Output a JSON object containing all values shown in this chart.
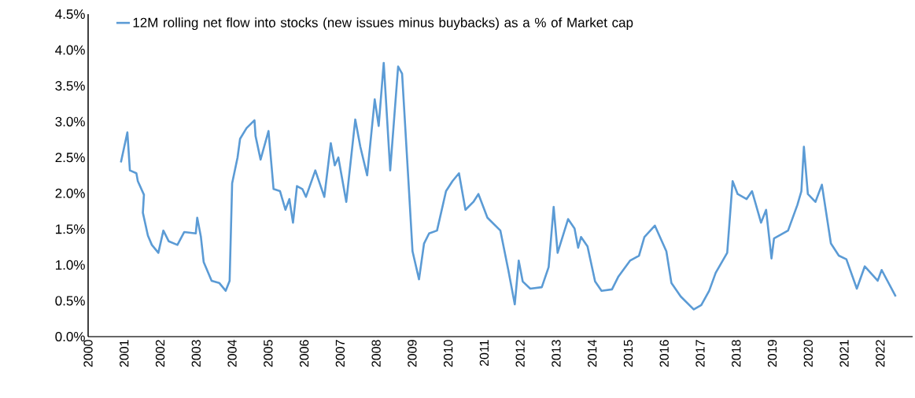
{
  "chart_data": {
    "type": "line",
    "legend": "top left",
    "x": [
      2000.91,
      2001.09,
      2001.16,
      2001.34,
      2001.38,
      2001.55,
      2001.52,
      2001.66,
      2001.77,
      2001.95,
      2002.09,
      2002.24,
      2002.48,
      2002.67,
      2002.99,
      2003.03,
      2003.13,
      2003.21,
      2003.43,
      2003.64,
      2003.82,
      2003.93,
      2004.0,
      2004.15,
      2004.22,
      2004.4,
      2004.62,
      2004.65,
      2004.79,
      2005.01,
      2005.15,
      2005.33,
      2005.48,
      2005.59,
      2005.69,
      2005.8,
      2005.95,
      2006.05,
      2006.31,
      2006.56,
      2006.74,
      2006.85,
      2006.95,
      2007.17,
      2007.42,
      2007.56,
      2007.75,
      2007.96,
      2008.07,
      2008.21,
      2008.39,
      2008.61,
      2008.72,
      2008.9,
      2009.01,
      2009.19,
      2009.33,
      2009.47,
      2009.69,
      2009.94,
      2010.12,
      2010.3,
      2010.48,
      2010.7,
      2010.84,
      2011.09,
      2011.45,
      2011.67,
      2011.85,
      2011.96,
      2012.07,
      2012.28,
      2012.6,
      2012.79,
      2012.93,
      2013.04,
      2013.33,
      2013.51,
      2013.61,
      2013.69,
      2013.87,
      2014.08,
      2014.26,
      2014.55,
      2014.73,
      2015.05,
      2015.3,
      2015.45,
      2015.74,
      2016.06,
      2016.2,
      2016.46,
      2016.82,
      2017.03,
      2017.25,
      2017.43,
      2017.75,
      2017.9,
      2018.04,
      2018.29,
      2018.44,
      2018.69,
      2018.83,
      2018.98,
      2019.05,
      2019.44,
      2019.7,
      2019.81,
      2019.88,
      2019.99,
      2020.2,
      2020.38,
      2020.63,
      2020.85,
      2021.06,
      2021.35,
      2021.57,
      2021.93,
      2022.04,
      2022.43
    ],
    "series": [
      {
        "name": "12M rolling net flow into stocks (new issues minus buybacks) as a % of Market cap",
        "color": "#5b9bd5",
        "values": [
          2.43,
          2.85,
          2.32,
          2.28,
          2.17,
          1.98,
          1.73,
          1.41,
          1.28,
          1.17,
          1.48,
          1.33,
          1.28,
          1.46,
          1.44,
          1.66,
          1.4,
          1.04,
          0.78,
          0.75,
          0.64,
          0.78,
          2.14,
          2.5,
          2.76,
          2.91,
          3.02,
          2.8,
          2.47,
          2.87,
          2.06,
          2.03,
          1.77,
          1.92,
          1.59,
          2.1,
          2.06,
          1.95,
          2.32,
          1.95,
          2.7,
          2.39,
          2.5,
          1.88,
          3.03,
          2.65,
          2.25,
          3.31,
          2.94,
          3.82,
          2.32,
          3.77,
          3.67,
          2.14,
          1.19,
          0.8,
          1.3,
          1.44,
          1.48,
          2.03,
          2.17,
          2.28,
          1.77,
          1.88,
          1.99,
          1.66,
          1.48,
          0.93,
          0.45,
          1.06,
          0.77,
          0.67,
          0.69,
          0.97,
          1.81,
          1.17,
          1.64,
          1.51,
          1.24,
          1.39,
          1.26,
          0.77,
          0.64,
          0.66,
          0.84,
          1.06,
          1.13,
          1.39,
          1.55,
          1.19,
          0.75,
          0.56,
          0.38,
          0.44,
          0.64,
          0.89,
          1.17,
          2.17,
          1.99,
          1.92,
          2.03,
          1.59,
          1.77,
          1.09,
          1.37,
          1.48,
          1.84,
          2.03,
          2.65,
          1.99,
          1.88,
          2.12,
          1.3,
          1.13,
          1.08,
          0.67,
          0.98,
          0.78,
          0.93,
          0.56
        ]
      }
    ],
    "xlim": [
      2000,
      2022.9
    ],
    "ylim": [
      0,
      4.5
    ],
    "xticks": [
      2000,
      2001,
      2002,
      2003,
      2004,
      2005,
      2006,
      2007,
      2008,
      2009,
      2010,
      2011,
      2012,
      2013,
      2014,
      2015,
      2016,
      2017,
      2018,
      2019,
      2020,
      2021,
      2022
    ],
    "yticks": [
      {
        "value": 0,
        "label": "0.0%"
      },
      {
        "value": 0.5,
        "label": "0.5%"
      },
      {
        "value": 1,
        "label": "1.0%"
      },
      {
        "value": 1.5,
        "label": "1.5%"
      },
      {
        "value": 2,
        "label": "2.0%"
      },
      {
        "value": 2.5,
        "label": "2.5%"
      },
      {
        "value": 3,
        "label": "3.0%"
      },
      {
        "value": 3.5,
        "label": "3.5%"
      },
      {
        "value": 4,
        "label": "4.0%"
      },
      {
        "value": 4.5,
        "label": "4.5%"
      }
    ]
  }
}
